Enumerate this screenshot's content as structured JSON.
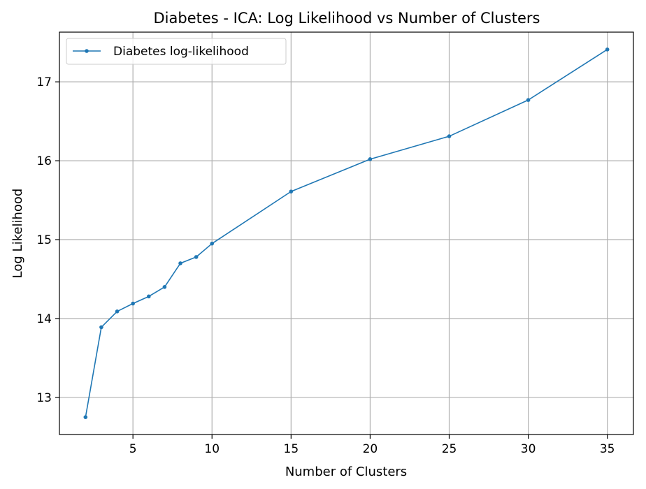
{
  "chart_data": {
    "type": "line",
    "title": "Diabetes - ICA: Log Likelihood vs Number of Clusters",
    "xlabel": "Number of Clusters",
    "ylabel": "Log Likelihood",
    "xlim": [
      0.35,
      36.65
    ],
    "ylim": [
      12.53,
      17.63
    ],
    "xticks": [
      5,
      10,
      15,
      20,
      25,
      30,
      35
    ],
    "yticks": [
      13,
      14,
      15,
      16,
      17
    ],
    "grid": true,
    "legend_position": "top-left",
    "series": [
      {
        "name": "Diabetes log-likelihood",
        "color": "#1f77b4",
        "marker": "circle",
        "x": [
          2,
          3,
          4,
          5,
          6,
          7,
          8,
          9,
          10,
          15,
          20,
          25,
          30,
          35
        ],
        "y": [
          12.75,
          13.89,
          14.09,
          14.19,
          14.28,
          14.4,
          14.7,
          14.78,
          14.95,
          15.61,
          16.02,
          16.31,
          16.77,
          17.41
        ]
      }
    ]
  }
}
